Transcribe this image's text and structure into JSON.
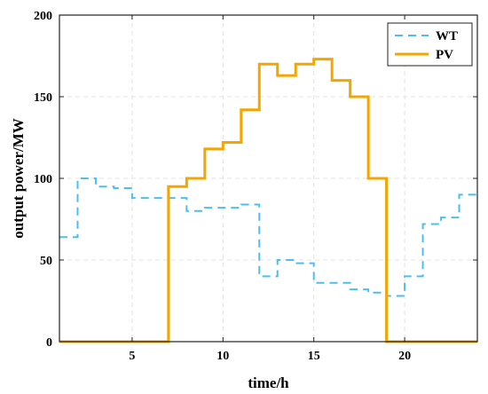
{
  "chart_data": {
    "type": "line",
    "step": true,
    "xlabel": "time/h",
    "ylabel": "output power/MW",
    "xlim": [
      1,
      24
    ],
    "ylim": [
      0,
      200
    ],
    "xticks": [
      5,
      10,
      15,
      20
    ],
    "yticks": [
      0,
      50,
      100,
      150,
      200
    ],
    "grid": true,
    "legend_position": "top-right",
    "series": [
      {
        "name": "WT",
        "color": "#4DBEEE",
        "style": "dashed",
        "x": [
          1,
          2,
          3,
          4,
          5,
          6,
          7,
          8,
          9,
          10,
          11,
          12,
          13,
          14,
          15,
          16,
          17,
          18,
          19,
          20,
          21,
          22,
          23,
          24
        ],
        "y": [
          64,
          100,
          95,
          94,
          88,
          88,
          88,
          80,
          82,
          82,
          84,
          40,
          50,
          48,
          36,
          36,
          32,
          30,
          28,
          40,
          72,
          76,
          90,
          90
        ]
      },
      {
        "name": "PV",
        "color": "#F4A500",
        "style": "solid",
        "x": [
          1,
          2,
          3,
          4,
          5,
          6,
          7,
          8,
          9,
          10,
          11,
          12,
          13,
          14,
          15,
          16,
          17,
          18,
          19,
          20,
          21,
          22,
          23,
          24
        ],
        "y": [
          0,
          0,
          0,
          0,
          0,
          0,
          95,
          100,
          118,
          122,
          142,
          170,
          163,
          170,
          173,
          160,
          150,
          100,
          0,
          0,
          0,
          0,
          0,
          0
        ]
      }
    ]
  }
}
